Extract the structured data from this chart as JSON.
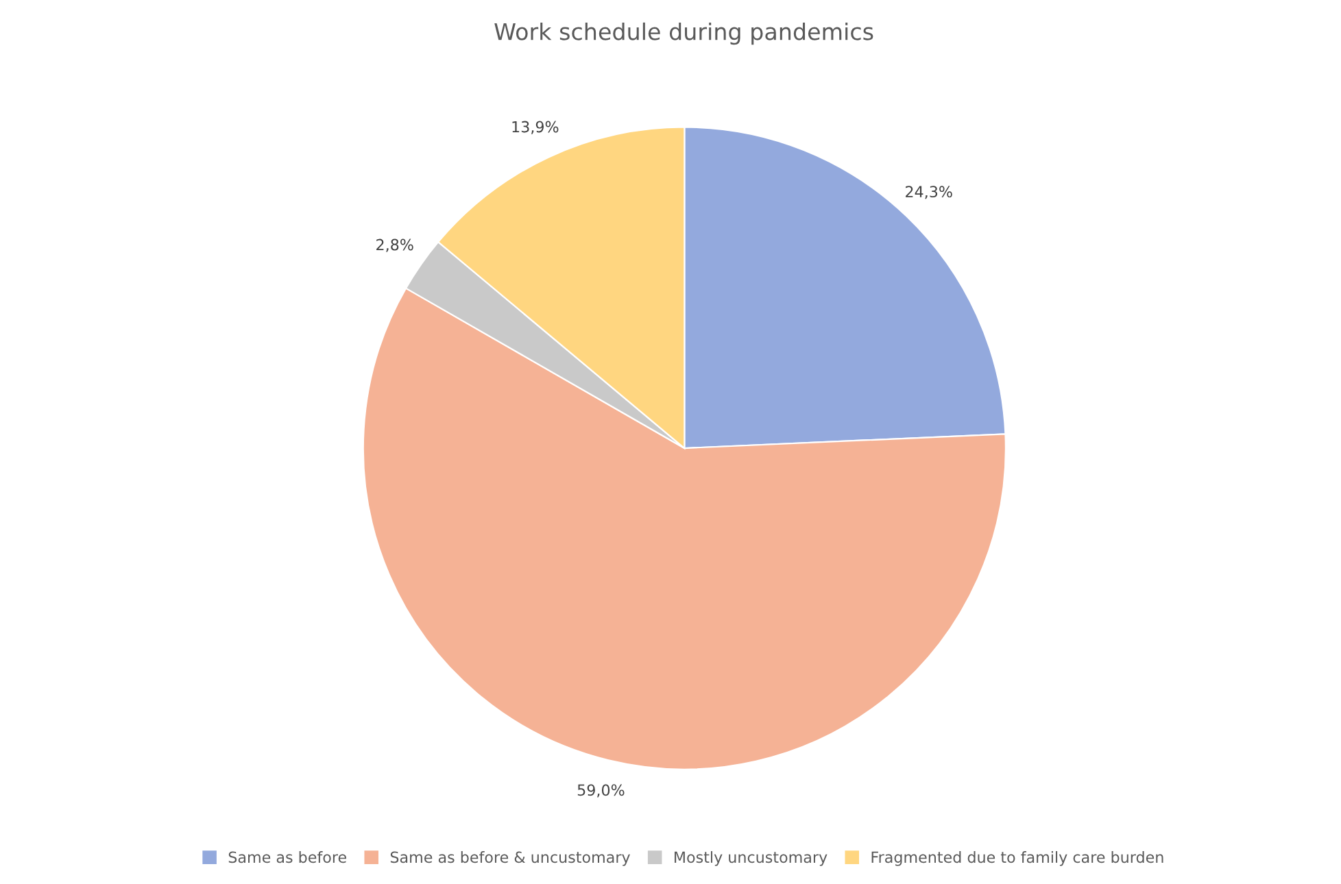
{
  "chart_data": {
    "type": "pie",
    "title": "Work schedule during pandemics",
    "categories": [
      "Same as before",
      "Same as before & uncustomary",
      "Mostly uncustomary",
      "Fragmented due to family care burden"
    ],
    "values": [
      24.3,
      59.0,
      2.8,
      13.9
    ],
    "value_labels": [
      "24,3%",
      "59,0%",
      "2,8%",
      "13,9%"
    ],
    "colors": [
      "#93a9dd",
      "#f5b295",
      "#c9c9c9",
      "#ffd680"
    ],
    "legend": "bottom"
  }
}
